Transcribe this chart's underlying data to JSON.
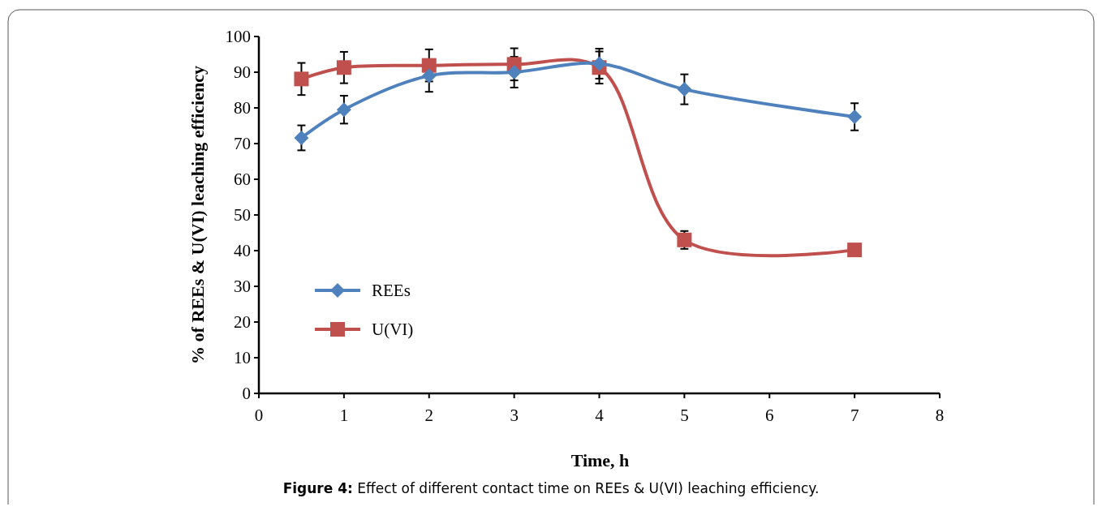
{
  "chart_data": {
    "type": "line",
    "title": "Figure 4: Effect of different contact time on REEs & U(VI) leaching efficiency.",
    "xlabel": "Time, h",
    "ylabel": "% of REEs & U(VI) leaching efficiency",
    "xlim": [
      0,
      8
    ],
    "xticks": [
      0,
      1,
      2,
      3,
      4,
      5,
      6,
      7,
      8
    ],
    "ylim": [
      0,
      100
    ],
    "yticks": [
      0,
      10,
      20,
      30,
      40,
      50,
      60,
      70,
      80,
      90,
      100
    ],
    "legend": "left",
    "series": [
      {
        "name": "REEs",
        "color": "#4f81bd",
        "marker": "diamond",
        "x": [
          0.5,
          1,
          2,
          3,
          4,
          5,
          7
        ],
        "values": [
          71.6,
          79.5,
          89,
          90,
          92.4,
          85.2,
          77.5
        ],
        "errors": [
          3.5,
          3.9,
          4.5,
          4.3,
          4.2,
          4.2,
          3.8
        ]
      },
      {
        "name": "U(VI)",
        "color": "#c0504d",
        "marker": "square",
        "x": [
          0.5,
          1,
          2,
          3,
          4,
          5,
          7
        ],
        "values": [
          88.1,
          91.3,
          91.9,
          92.2,
          91.3,
          43,
          40.2
        ],
        "errors": [
          4.5,
          4.4,
          4.5,
          4.5,
          4.5,
          2.5,
          null
        ]
      }
    ]
  }
}
